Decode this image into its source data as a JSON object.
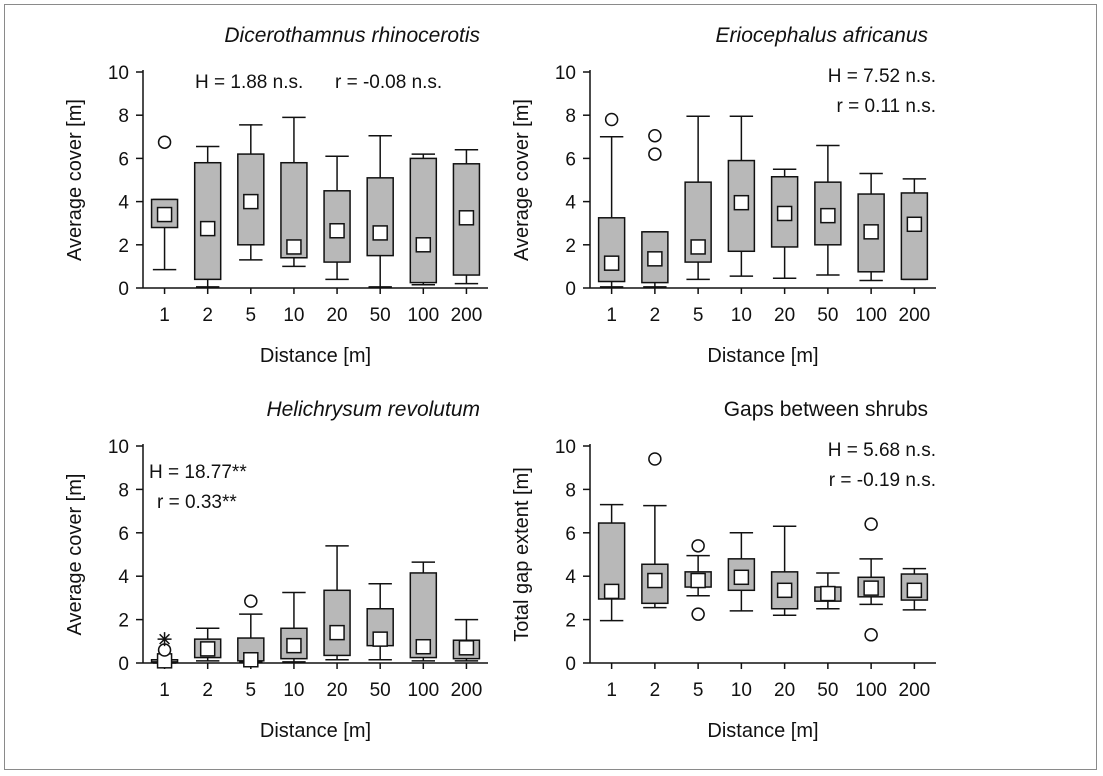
{
  "chart_data": [
    {
      "type": "box",
      "title": "Dicerothamnus rhinocerotis",
      "title_italic": true,
      "xlabel": "Distance [m]",
      "ylabel": "Average cover [m]",
      "categories": [
        "1",
        "2",
        "5",
        "10",
        "20",
        "50",
        "100",
        "200"
      ],
      "ylim": [
        0,
        10
      ],
      "yticks": [
        "0",
        "2",
        "4",
        "6",
        "8",
        "10"
      ],
      "stats": [
        "H = 1.88 n.s.",
        "r = -0.08 n.s."
      ],
      "stats_layout": "inline-top-right",
      "boxes": [
        {
          "whisker_low": 0.85,
          "q1": 2.8,
          "median": 3.4,
          "q3": 4.1,
          "whisker_high": 4.1,
          "outliers": [
            6.75
          ],
          "extremes": []
        },
        {
          "whisker_low": 0.05,
          "q1": 0.4,
          "median": 2.75,
          "q3": 5.8,
          "whisker_high": 6.55,
          "outliers": [],
          "extremes": []
        },
        {
          "whisker_low": 1.3,
          "q1": 2.0,
          "median": 4.0,
          "q3": 6.2,
          "whisker_high": 7.55,
          "outliers": [],
          "extremes": []
        },
        {
          "whisker_low": 1.0,
          "q1": 1.4,
          "median": 1.9,
          "q3": 5.8,
          "whisker_high": 7.9,
          "outliers": [],
          "extremes": []
        },
        {
          "whisker_low": 0.4,
          "q1": 1.2,
          "median": 2.65,
          "q3": 4.5,
          "whisker_high": 6.1,
          "outliers": [],
          "extremes": []
        },
        {
          "whisker_low": 0.05,
          "q1": 1.5,
          "median": 2.55,
          "q3": 5.1,
          "whisker_high": 7.05,
          "outliers": [],
          "extremes": []
        },
        {
          "whisker_low": 0.15,
          "q1": 0.25,
          "median": 2.0,
          "q3": 6.0,
          "whisker_high": 6.2,
          "outliers": [],
          "extremes": []
        },
        {
          "whisker_low": 0.2,
          "q1": 0.6,
          "median": 3.25,
          "q3": 5.75,
          "whisker_high": 6.4,
          "outliers": [],
          "extremes": []
        }
      ]
    },
    {
      "type": "box",
      "title": "Eriocephalus africanus",
      "title_italic": true,
      "xlabel": "Distance [m]",
      "ylabel": "Average cover [m]",
      "categories": [
        "1",
        "2",
        "5",
        "10",
        "20",
        "50",
        "100",
        "200"
      ],
      "ylim": [
        0,
        10
      ],
      "yticks": [
        "0",
        "2",
        "4",
        "6",
        "8",
        "10"
      ],
      "stats": [
        "H = 7.52 n.s.",
        "r = 0.11 n.s."
      ],
      "stats_layout": "stacked-right",
      "boxes": [
        {
          "whisker_low": 0.05,
          "q1": 0.3,
          "median": 1.15,
          "q3": 3.25,
          "whisker_high": 7.0,
          "outliers": [
            7.8
          ],
          "extremes": []
        },
        {
          "whisker_low": 0.05,
          "q1": 0.25,
          "median": 1.35,
          "q3": 2.6,
          "whisker_high": 2.6,
          "outliers": [
            6.2,
            7.05
          ],
          "extremes": []
        },
        {
          "whisker_low": 0.4,
          "q1": 1.2,
          "median": 1.9,
          "q3": 4.9,
          "whisker_high": 7.95,
          "outliers": [],
          "extremes": []
        },
        {
          "whisker_low": 0.55,
          "q1": 1.7,
          "median": 3.95,
          "q3": 5.9,
          "whisker_high": 7.95,
          "outliers": [],
          "extremes": []
        },
        {
          "whisker_low": 0.45,
          "q1": 1.9,
          "median": 3.45,
          "q3": 5.15,
          "whisker_high": 5.5,
          "outliers": [],
          "extremes": []
        },
        {
          "whisker_low": 0.6,
          "q1": 2.0,
          "median": 3.35,
          "q3": 4.9,
          "whisker_high": 6.6,
          "outliers": [],
          "extremes": []
        },
        {
          "whisker_low": 0.35,
          "q1": 0.75,
          "median": 2.6,
          "q3": 4.35,
          "whisker_high": 5.3,
          "outliers": [],
          "extremes": []
        },
        {
          "whisker_low": 0.4,
          "q1": 0.4,
          "median": 2.95,
          "q3": 4.4,
          "whisker_high": 5.05,
          "outliers": [],
          "extremes": []
        }
      ]
    },
    {
      "type": "box",
      "title": "Helichrysum revolutum",
      "title_italic": true,
      "xlabel": "Distance [m]",
      "ylabel": "Average cover [m]",
      "categories": [
        "1",
        "2",
        "5",
        "10",
        "20",
        "50",
        "100",
        "200"
      ],
      "ylim": [
        0,
        10
      ],
      "yticks": [
        "0",
        "2",
        "4",
        "6",
        "8",
        "10"
      ],
      "stats": [
        "H = 18.77**",
        "r = 0.33**"
      ],
      "stats_layout": "stacked-left",
      "boxes": [
        {
          "whisker_low": 0.0,
          "q1": 0.05,
          "median": 0.1,
          "q3": 0.15,
          "whisker_high": 0.15,
          "outliers": [
            0.6
          ],
          "extremes": [
            1.1
          ]
        },
        {
          "whisker_low": 0.1,
          "q1": 0.25,
          "median": 0.65,
          "q3": 1.1,
          "whisker_high": 1.6,
          "outliers": [],
          "extremes": []
        },
        {
          "whisker_low": 0.05,
          "q1": 0.1,
          "median": 0.15,
          "q3": 1.15,
          "whisker_high": 2.25,
          "outliers": [
            2.85
          ],
          "extremes": []
        },
        {
          "whisker_low": 0.05,
          "q1": 0.2,
          "median": 0.8,
          "q3": 1.6,
          "whisker_high": 3.25,
          "outliers": [],
          "extremes": []
        },
        {
          "whisker_low": 0.15,
          "q1": 0.35,
          "median": 1.4,
          "q3": 3.35,
          "whisker_high": 5.4,
          "outliers": [],
          "extremes": []
        },
        {
          "whisker_low": 0.15,
          "q1": 0.8,
          "median": 1.1,
          "q3": 2.5,
          "whisker_high": 3.65,
          "outliers": [],
          "extremes": []
        },
        {
          "whisker_low": 0.1,
          "q1": 0.25,
          "median": 0.75,
          "q3": 4.15,
          "whisker_high": 4.65,
          "outliers": [],
          "extremes": []
        },
        {
          "whisker_low": 0.1,
          "q1": 0.2,
          "median": 0.7,
          "q3": 1.05,
          "whisker_high": 2.0,
          "outliers": [],
          "extremes": []
        }
      ]
    },
    {
      "type": "box",
      "title": "Gaps between shrubs",
      "title_italic": false,
      "xlabel": "Distance [m]",
      "ylabel": "Total gap extent [m]",
      "categories": [
        "1",
        "2",
        "5",
        "10",
        "20",
        "50",
        "100",
        "200"
      ],
      "ylim": [
        0,
        10
      ],
      "yticks": [
        "0",
        "2",
        "4",
        "6",
        "8",
        "10"
      ],
      "stats": [
        "H = 5.68 n.s.",
        "r = -0.19 n.s."
      ],
      "stats_layout": "stacked-right",
      "boxes": [
        {
          "whisker_low": 1.95,
          "q1": 2.95,
          "median": 3.3,
          "q3": 6.45,
          "whisker_high": 7.3,
          "outliers": [],
          "extremes": []
        },
        {
          "whisker_low": 2.55,
          "q1": 2.75,
          "median": 3.8,
          "q3": 4.55,
          "whisker_high": 7.25,
          "outliers": [
            9.4
          ],
          "extremes": []
        },
        {
          "whisker_low": 3.1,
          "q1": 3.5,
          "median": 3.8,
          "q3": 4.2,
          "whisker_high": 4.95,
          "outliers": [
            2.25,
            5.4
          ],
          "extremes": []
        },
        {
          "whisker_low": 2.4,
          "q1": 3.35,
          "median": 3.95,
          "q3": 4.8,
          "whisker_high": 6.0,
          "outliers": [],
          "extremes": []
        },
        {
          "whisker_low": 2.2,
          "q1": 2.5,
          "median": 3.35,
          "q3": 4.2,
          "whisker_high": 6.3,
          "outliers": [],
          "extremes": []
        },
        {
          "whisker_low": 2.5,
          "q1": 2.85,
          "median": 3.2,
          "q3": 3.5,
          "whisker_high": 4.15,
          "outliers": [],
          "extremes": []
        },
        {
          "whisker_low": 2.7,
          "q1": 3.05,
          "median": 3.45,
          "q3": 3.95,
          "whisker_high": 4.8,
          "outliers": [
            1.3,
            6.4
          ],
          "extremes": []
        },
        {
          "whisker_low": 2.45,
          "q1": 2.9,
          "median": 3.35,
          "q3": 4.1,
          "whisker_high": 4.35,
          "outliers": [],
          "extremes": []
        }
      ]
    }
  ],
  "colors": {
    "box_fill": "#b8b8b8",
    "median_fill": "#ffffff",
    "line": "#111111",
    "frame": "#8a8a8a"
  },
  "symbols": {
    "median": "square-marker",
    "outlier": "circle-marker",
    "extreme": "asterisk-marker"
  }
}
